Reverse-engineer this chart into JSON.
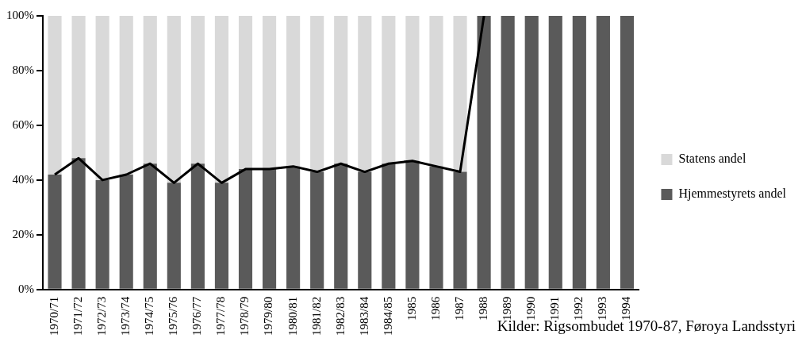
{
  "chart_data": {
    "type": "bar",
    "stacked": true,
    "categories": [
      "1970/71",
      "1971/72",
      "1972/73",
      "1973/74",
      "1974/75",
      "1975/76",
      "1976/77",
      "1977/78",
      "1978/79",
      "1979/80",
      "1980/81",
      "1981/82",
      "1982/83",
      "1983/84",
      "1984/85",
      "1985",
      "1986",
      "1987",
      "1988",
      "1989",
      "1990",
      "1991",
      "1992",
      "1993",
      "1994"
    ],
    "series": [
      {
        "name": "Hjemmestyrets andel",
        "color": "#5a5a5a",
        "values": [
          42,
          48,
          40,
          42,
          46,
          39,
          46,
          39,
          44,
          44,
          45,
          43,
          46,
          43,
          46,
          47,
          45,
          43,
          100,
          100,
          100,
          100,
          100,
          100,
          100
        ]
      },
      {
        "name": "Statens andel",
        "color": "#d9d9d9",
        "values": [
          58,
          52,
          60,
          58,
          54,
          61,
          54,
          61,
          56,
          56,
          55,
          57,
          54,
          57,
          54,
          53,
          55,
          57,
          0,
          0,
          0,
          0,
          0,
          0,
          0
        ]
      },
      {
        "type": "line",
        "color": "#000000",
        "values": [
          42,
          48,
          40,
          42,
          46,
          39,
          46,
          39,
          44,
          44,
          45,
          43,
          46,
          43,
          46,
          47,
          45,
          43,
          100,
          null,
          null,
          null,
          null,
          null,
          null
        ]
      }
    ],
    "ylim": [
      0,
      100
    ],
    "yticks": [
      {
        "value": 0,
        "label": "0%"
      },
      {
        "value": 20,
        "label": "20%"
      },
      {
        "value": 40,
        "label": "40%"
      },
      {
        "value": 60,
        "label": "60%"
      },
      {
        "value": 80,
        "label": "80%"
      },
      {
        "value": 100,
        "label": "100%"
      }
    ],
    "grid": false,
    "legend": "right",
    "marker": "none",
    "annotations": [
      "Kilder: Rigsombudet 1970-87, Føroya Landsstyri"
    ]
  }
}
